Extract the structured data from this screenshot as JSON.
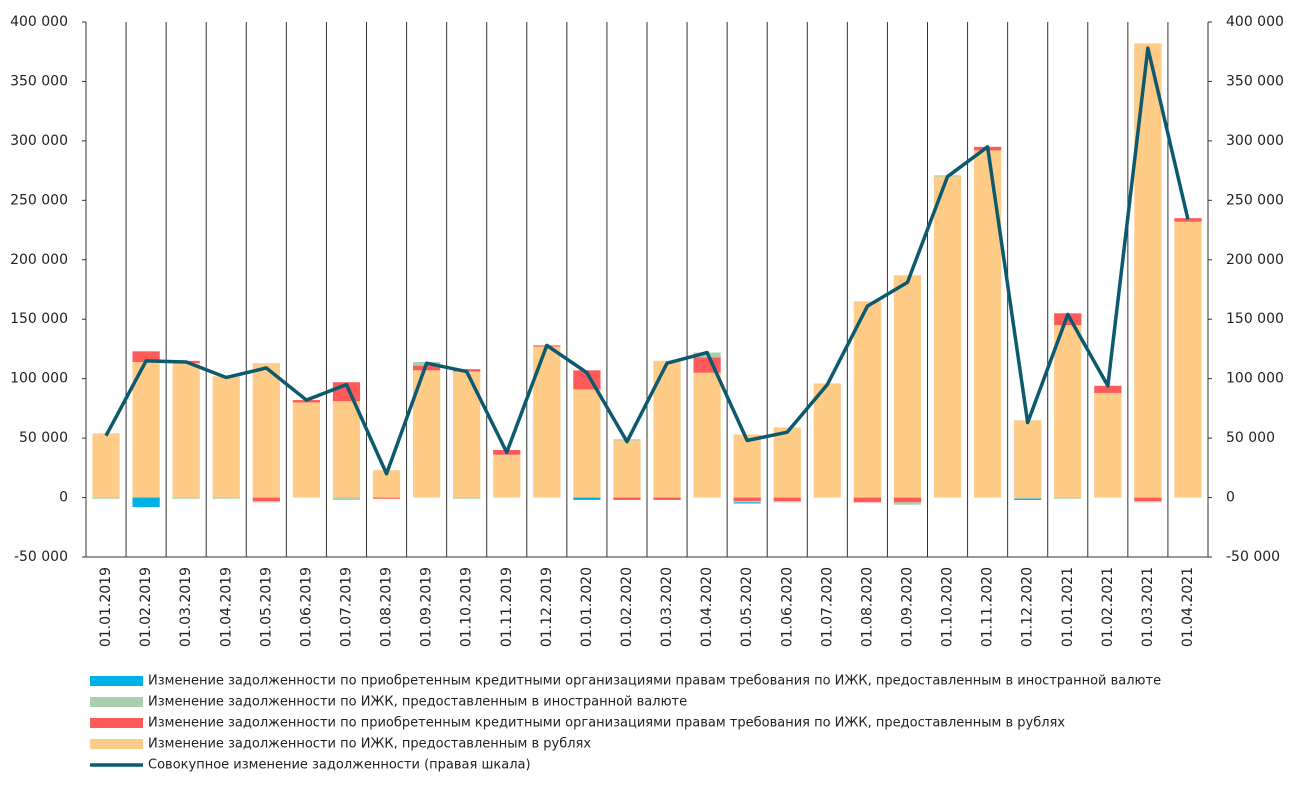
{
  "chart_data": {
    "type": "stacked-bar-line",
    "categories": [
      "01.01.2019",
      "01.02.2019",
      "01.03.2019",
      "01.04.2019",
      "01.05.2019",
      "01.06.2019",
      "01.07.2019",
      "01.08.2019",
      "01.09.2019",
      "01.10.2019",
      "01.11.2019",
      "01.12.2019",
      "01.01.2020",
      "01.02.2020",
      "01.03.2020",
      "01.04.2020",
      "01.05.2020",
      "01.06.2020",
      "01.07.2020",
      "01.08.2020",
      "01.09.2020",
      "01.10.2020",
      "01.11.2020",
      "01.12.2020",
      "01.01.2021",
      "01.02.2021",
      "01.03.2021",
      "01.04.2021"
    ],
    "series": [
      {
        "name": "Изменение задолженности по ИЖК, предоставленным в рублях",
        "color": "#ffcc88",
        "values": [
          54000,
          114000,
          113000,
          102000,
          113000,
          80000,
          81000,
          23000,
          107000,
          106000,
          36000,
          127000,
          91000,
          48000,
          115000,
          105000,
          53000,
          59000,
          96000,
          165000,
          187000,
          270000,
          292000,
          65000,
          145000,
          88000,
          382000,
          232000
        ]
      },
      {
        "name": "Изменение задолженности по приобретенным кредитными организациями правам требования по ИЖК, предоставленным в рублях",
        "color": "#ff5a5a",
        "values": [
          0,
          9000,
          2000,
          0,
          -3000,
          2000,
          16000,
          -1000,
          4000,
          2000,
          4000,
          1000,
          16000,
          -2000,
          -2000,
          13000,
          -3000,
          -3000,
          0,
          -4000,
          -4000,
          0,
          3000,
          0,
          10000,
          6000,
          -3000,
          3000
        ]
      },
      {
        "name": "Изменение задолженности по ИЖК, предоставленным в иностранной валюте",
        "color": "#a9cfb0",
        "values": [
          -1000,
          0,
          -1000,
          -1000,
          -1000,
          0,
          -2000,
          0,
          3000,
          -1000,
          0,
          0,
          0,
          1000,
          0,
          4000,
          -1000,
          -1000,
          0,
          0,
          -2000,
          1000,
          0,
          -1000,
          -1000,
          0,
          -1000,
          0
        ]
      },
      {
        "name": "Изменение задолженности по приобретенным кредитными организациями правам требования по ИЖК, предоставленным в иностранной валюте",
        "color": "#00b0e6",
        "values": [
          0,
          -8000,
          0,
          0,
          0,
          0,
          0,
          0,
          0,
          0,
          0,
          0,
          -2000,
          0,
          0,
          0,
          -1000,
          0,
          0,
          0,
          0,
          0,
          0,
          -1000,
          0,
          0,
          0,
          0
        ]
      },
      {
        "name": "Совокупное изменение задолженности (правая шкала)",
        "color": "#0d5a6e",
        "type": "line",
        "axis": "y2",
        "values": [
          52000,
          115000,
          114000,
          101000,
          109000,
          82000,
          95000,
          20000,
          113000,
          106000,
          38000,
          128000,
          105000,
          47000,
          113000,
          122000,
          48000,
          55000,
          95000,
          161000,
          181000,
          270000,
          295000,
          63000,
          154000,
          94000,
          378000,
          234000
        ]
      }
    ],
    "ylim": [
      -50000,
      400000
    ],
    "yticks": [
      {
        "value": -50000,
        "label": "-50 000"
      },
      0,
      {
        "value": 50000,
        "label": "50 000"
      },
      {
        "value": 100000,
        "label": "100 000"
      },
      {
        "value": 150000,
        "label": "150 000"
      },
      {
        "value": 200000,
        "label": "200 000"
      },
      {
        "value": 250000,
        "label": "250 000"
      },
      {
        "value": 300000,
        "label": "300 000"
      },
      {
        "value": 350000,
        "label": "350 000"
      },
      {
        "value": 400000,
        "label": "400 000"
      }
    ],
    "y2lim": [
      -50000,
      400000
    ],
    "y2ticks": [
      {
        "value": -50000,
        "label": "-50 000"
      },
      0,
      {
        "value": 50000,
        "label": "50 000"
      },
      {
        "value": 100000,
        "label": "100 000"
      },
      {
        "value": 150000,
        "label": "150 000"
      },
      {
        "value": 200000,
        "label": "200 000"
      },
      {
        "value": 250000,
        "label": "250 000"
      },
      {
        "value": 300000,
        "label": "300 000"
      },
      {
        "value": 350000,
        "label": "350 000"
      },
      {
        "value": 400000,
        "label": "400 000"
      }
    ]
  }
}
